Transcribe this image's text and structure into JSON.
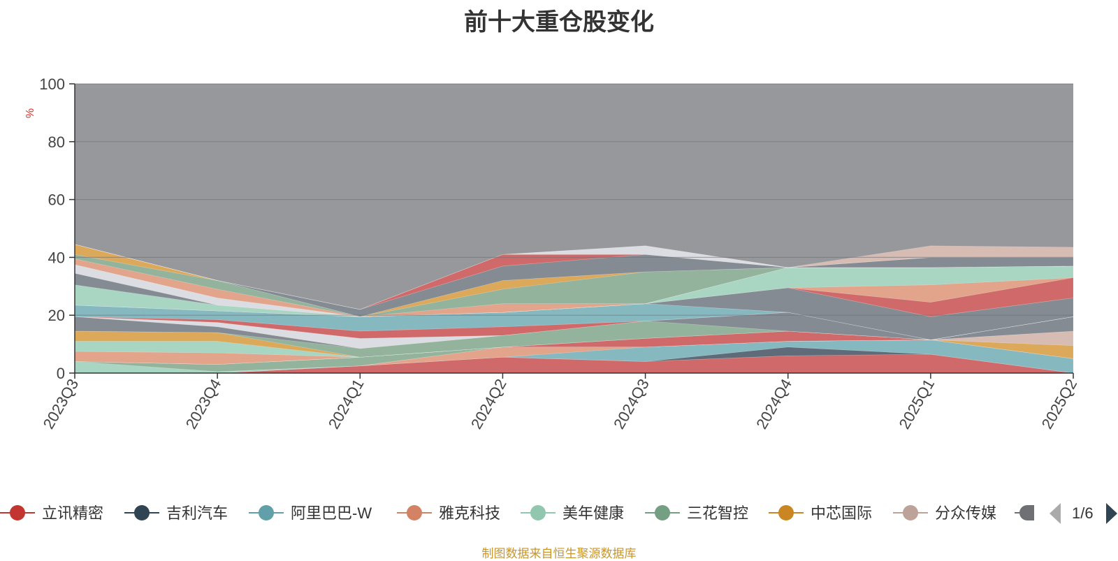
{
  "chart_data": {
    "type": "area",
    "title": "前十大重仓股变化",
    "ylabel": "%",
    "ylim": [
      0,
      100
    ],
    "yticks": [
      0,
      20,
      40,
      60,
      80,
      100
    ],
    "grid": true,
    "categories": [
      "2023Q3",
      "2023Q4",
      "2024Q1",
      "2024Q2",
      "2024Q3",
      "2024Q4",
      "2025Q1",
      "2025Q2"
    ],
    "series": [
      {
        "name": "立讯精密",
        "color": "#d06a6a",
        "values": [
          0,
          0,
          2.5,
          5.5,
          4,
          6,
          6.5,
          0
        ]
      },
      {
        "name": "吉利汽车",
        "color": "#5f6b78",
        "values": [
          0,
          0,
          0,
          0,
          0,
          3,
          0,
          0
        ]
      },
      {
        "name": "阿里巴巴-W",
        "color": "#86b8c0",
        "values": [
          0,
          0,
          0,
          0,
          5,
          2,
          5,
          5
        ]
      },
      {
        "name": "雅克科技",
        "color": "#e2a48a",
        "values": [
          0,
          0,
          0,
          3.5,
          0,
          0,
          0,
          0
        ]
      },
      {
        "name": "美年健康",
        "color": "#a9d6c2",
        "values": [
          4,
          0.5,
          0,
          0,
          0,
          0,
          0,
          0
        ]
      },
      {
        "name": "三花智控",
        "color": "#94b39c",
        "values": [
          0,
          2.5,
          3,
          0,
          0,
          0,
          0,
          0
        ]
      },
      {
        "name": "中芯国际",
        "color": "#dca85a",
        "values": [
          0,
          0,
          0,
          0,
          0,
          0,
          0,
          4.5
        ]
      },
      {
        "name": "分众传媒",
        "color": "#d7bcb4",
        "values": [
          0,
          0,
          0,
          0,
          0,
          0,
          0,
          5
        ]
      },
      {
        "name": "",
        "color": "#858b92",
        "values": [
          0,
          0,
          0,
          0,
          0,
          0,
          0,
          5
        ]
      },
      {
        "name": "",
        "color": "#d06a6a",
        "values": [
          0,
          0,
          0,
          0,
          3,
          3.5,
          0,
          0
        ]
      },
      {
        "name": "",
        "color": "#e2a48a",
        "values": [
          3.5,
          4,
          0,
          0,
          0,
          0,
          0,
          0
        ]
      },
      {
        "name": "",
        "color": "#a9d6c2",
        "values": [
          3.5,
          4,
          0,
          0,
          0,
          0,
          0,
          0
        ]
      },
      {
        "name": "",
        "color": "#dca85a",
        "values": [
          3.5,
          3,
          0,
          0,
          0,
          0,
          0,
          0
        ]
      },
      {
        "name": "",
        "color": "#94b39c",
        "values": [
          0,
          0,
          3,
          4,
          6,
          0,
          0,
          0
        ]
      },
      {
        "name": "",
        "color": "#858b92",
        "values": [
          5,
          2,
          0,
          0,
          0,
          6.5,
          0,
          0
        ]
      },
      {
        "name": "",
        "color": "#dcdde2",
        "values": [
          0,
          1.5,
          3.5,
          0,
          0,
          0,
          0,
          0
        ]
      },
      {
        "name": "",
        "color": "#d06a6a",
        "values": [
          0,
          1,
          2.5,
          3,
          0,
          0,
          0,
          0
        ]
      },
      {
        "name": "",
        "color": "#86b8c0",
        "values": [
          4,
          3,
          5,
          5,
          6,
          0,
          0,
          0
        ]
      },
      {
        "name": "",
        "color": "#858b92",
        "values": [
          0,
          0,
          0,
          0,
          0,
          8.5,
          8,
          6.5
        ]
      },
      {
        "name": "",
        "color": "#d06a6a",
        "values": [
          0,
          0,
          0,
          0,
          0,
          0,
          5,
          7
        ]
      },
      {
        "name": "",
        "color": "#e2a48a",
        "values": [
          0,
          0,
          0,
          0,
          0,
          0,
          6,
          0
        ]
      },
      {
        "name": "",
        "color": "#a9d6c2",
        "values": [
          7,
          2,
          0,
          0,
          0,
          7,
          6,
          4
        ]
      },
      {
        "name": "",
        "color": "#858b92",
        "values": [
          4,
          0,
          0,
          0,
          0,
          0,
          0,
          0
        ]
      },
      {
        "name": "",
        "color": "#dcdde2",
        "values": [
          3,
          2.5,
          0,
          0,
          0,
          0,
          0,
          0
        ]
      },
      {
        "name": "",
        "color": "#e2a48a",
        "values": [
          2,
          3,
          0,
          3,
          0,
          0,
          0,
          0
        ]
      },
      {
        "name": "",
        "color": "#94b39c",
        "values": [
          1.5,
          3,
          0,
          5,
          11,
          0,
          0,
          0
        ]
      },
      {
        "name": "",
        "color": "#dca85a",
        "values": [
          3.5,
          0,
          0,
          3,
          0,
          0,
          0,
          0
        ]
      },
      {
        "name": "",
        "color": "#858b92",
        "values": [
          0,
          0,
          2.5,
          5,
          6,
          0,
          3.5,
          3
        ]
      },
      {
        "name": "",
        "color": "#d06a6a",
        "values": [
          0,
          0,
          0,
          4,
          0,
          0,
          0,
          0
        ]
      },
      {
        "name": "",
        "color": "#dcdde2",
        "values": [
          0,
          0,
          0,
          0,
          3,
          0,
          0,
          0
        ]
      },
      {
        "name": "",
        "color": "#d7bcb4",
        "values": [
          0,
          0,
          0,
          0,
          0,
          0,
          4,
          3.5
        ]
      }
    ],
    "background_color": "#97989c",
    "legend_position": "bottom"
  },
  "legend": {
    "items": [
      {
        "name": "立讯精密",
        "color": "#c23531"
      },
      {
        "name": "吉利汽车",
        "color": "#2f4554"
      },
      {
        "name": "阿里巴巴-W",
        "color": "#61a0a8"
      },
      {
        "name": "雅克科技",
        "color": "#d48265"
      },
      {
        "name": "美年健康",
        "color": "#91c7ae"
      },
      {
        "name": "三花智控",
        "color": "#749f83"
      },
      {
        "name": "中芯国际",
        "color": "#ca8622"
      },
      {
        "name": "分众传媒",
        "color": "#bda29a"
      }
    ],
    "page": "1/6"
  },
  "source_note": "制图数据来自恒生聚源数据库"
}
